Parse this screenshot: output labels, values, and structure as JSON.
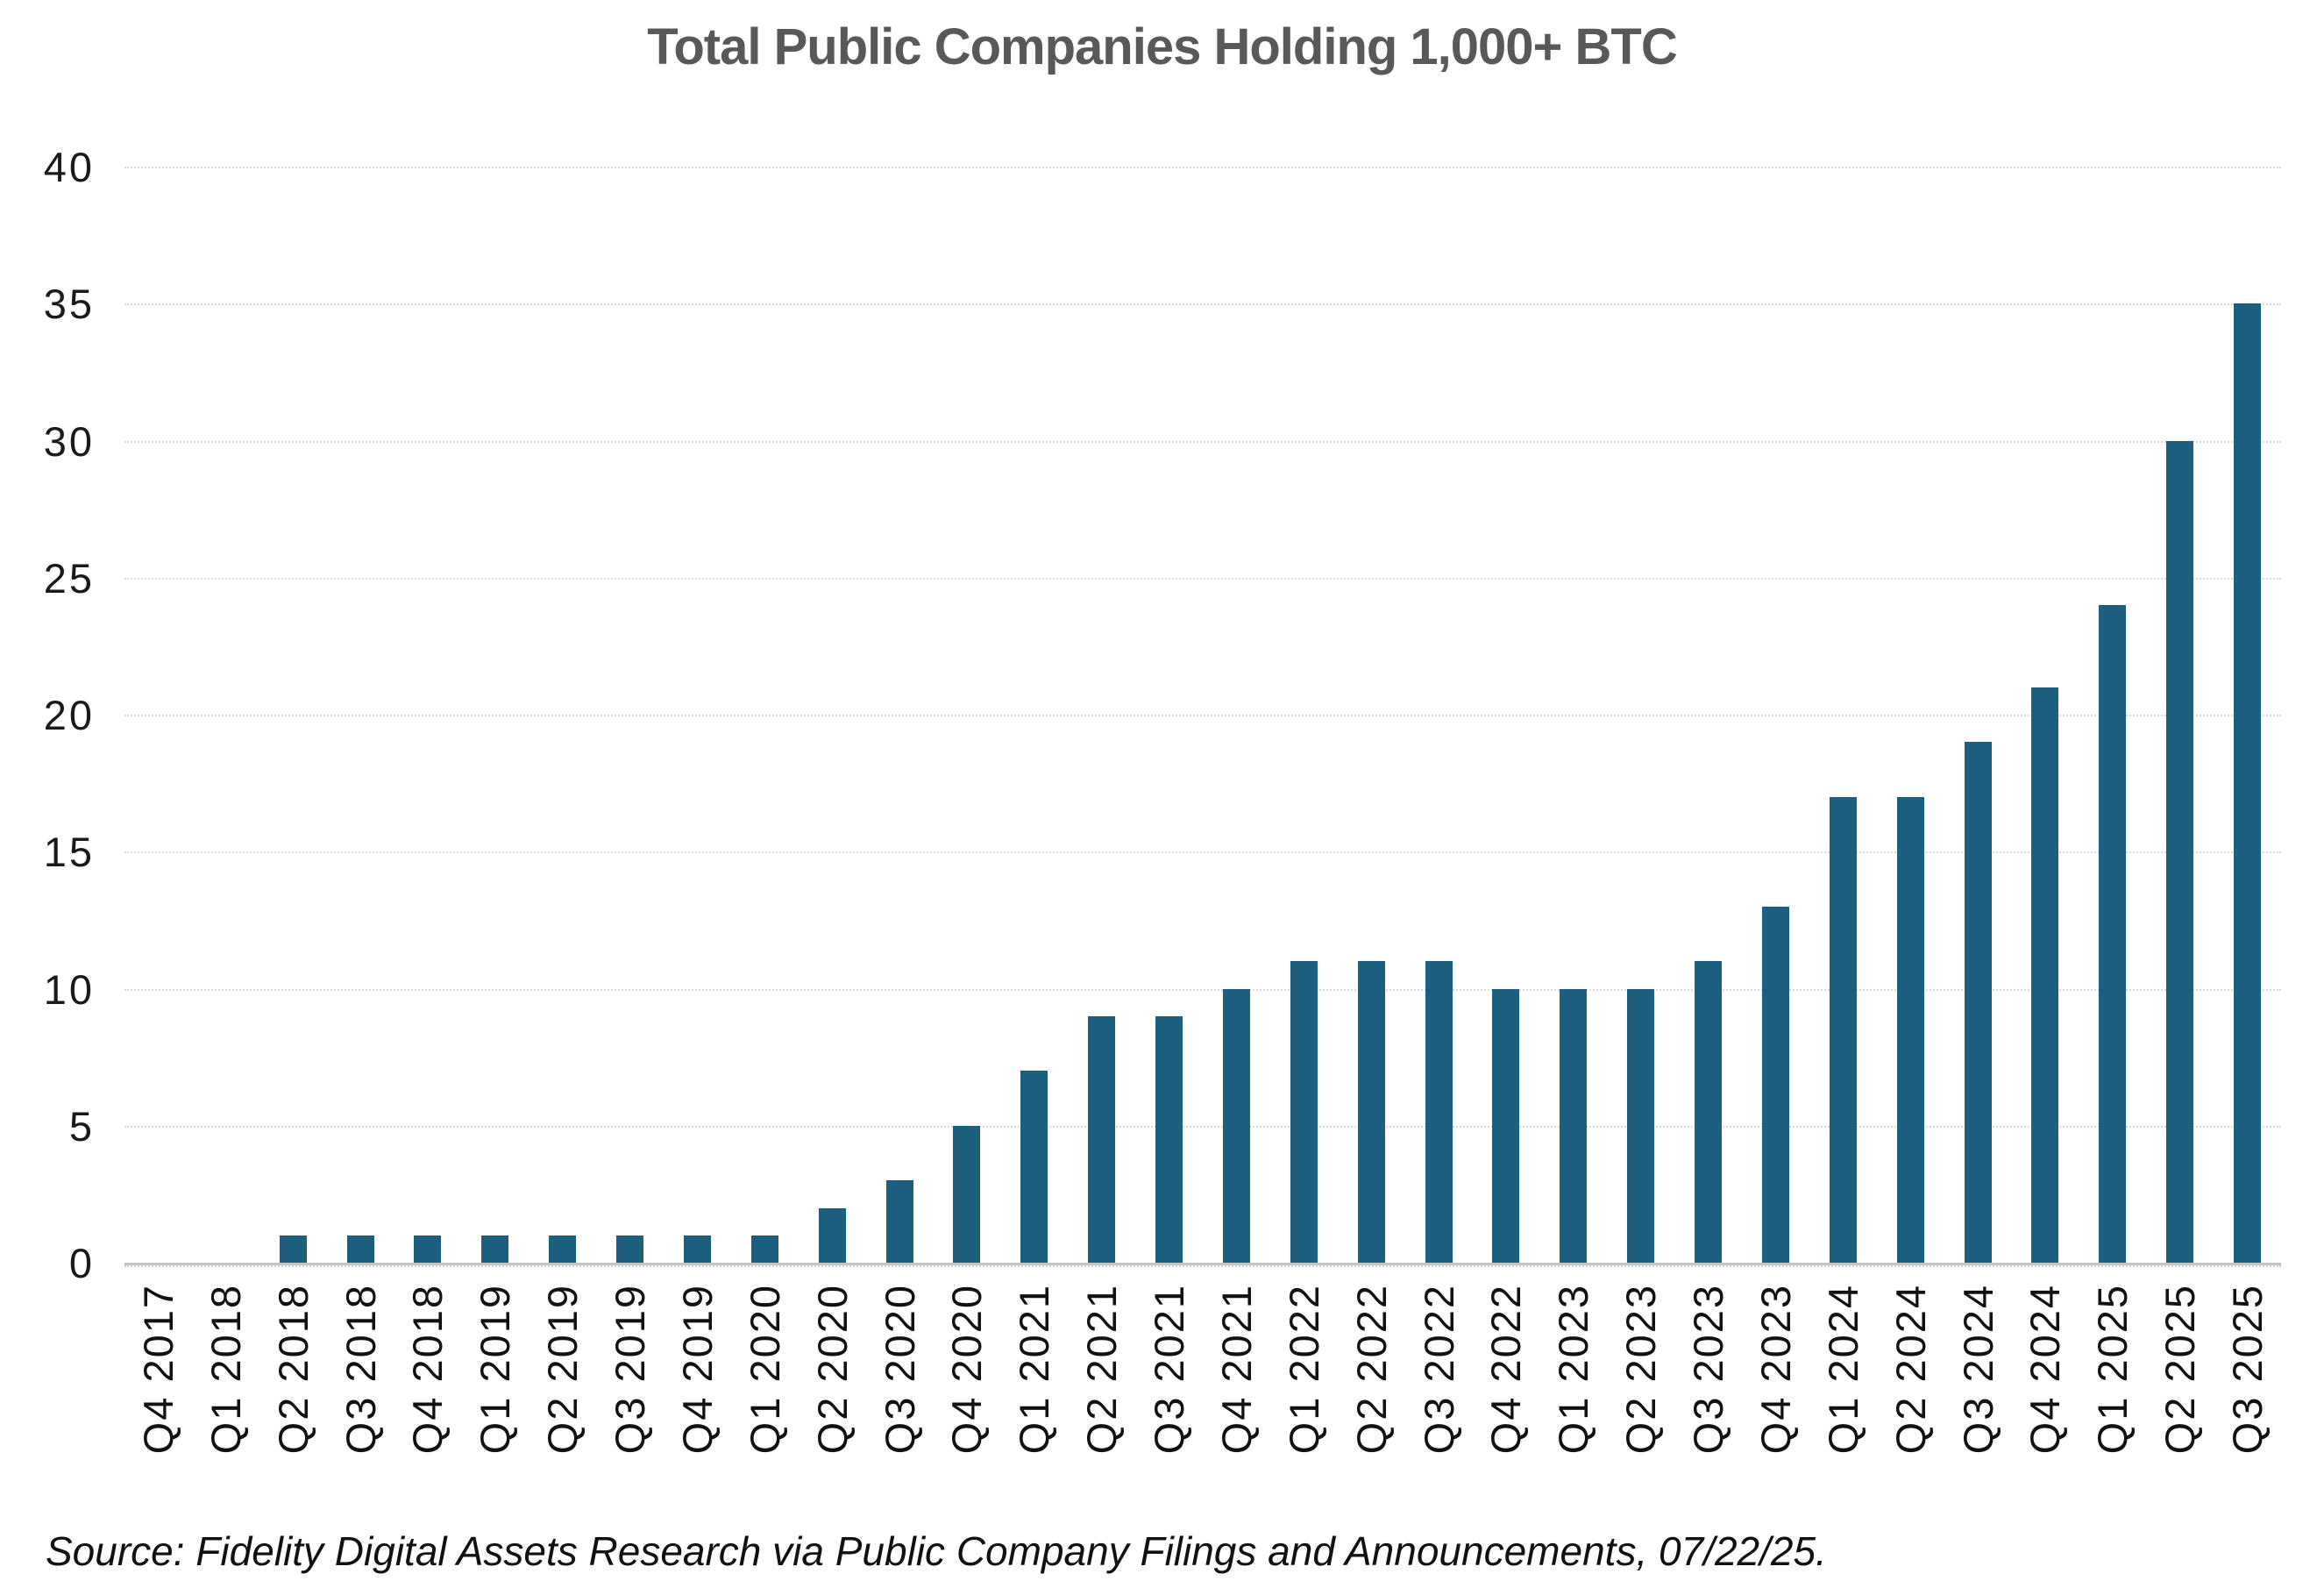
{
  "title": "Total Public Companies Holding 1,000+ BTC",
  "source_note": "Source: Fidelity Digital Assets Research via Public Company Filings and Announcements, 07/22/25.",
  "colors": {
    "bar": "#1d5f7e",
    "title_text": "#595959",
    "axis_text": "#1a1a1a",
    "gridline": "#d9d9d9",
    "baseline": "#c3c3c3",
    "background": "#ffffff"
  },
  "y_axis": {
    "min": 0,
    "max": 40,
    "tick_step": 5,
    "ticks": [
      40,
      35,
      30,
      25,
      20,
      15,
      10,
      5,
      0
    ]
  },
  "chart_data": {
    "type": "bar",
    "title": "Total Public Companies Holding 1,000+ BTC",
    "xlabel": "",
    "ylabel": "",
    "ylim": [
      0,
      40
    ],
    "grid": "horizontal-dotted",
    "legend": "none",
    "x_label_rotation": 90,
    "categories": [
      "Q4 2017",
      "Q1 2018",
      "Q2 2018",
      "Q3 2018",
      "Q4 2018",
      "Q1 2019",
      "Q2 2019",
      "Q3 2019",
      "Q4 2019",
      "Q1 2020",
      "Q2 2020",
      "Q3 2020",
      "Q4 2020",
      "Q1 2021",
      "Q2 2021",
      "Q3 2021",
      "Q4 2021",
      "Q1 2022",
      "Q2 2022",
      "Q3 2022",
      "Q4 2022",
      "Q1 2023",
      "Q2 2023",
      "Q3 2023",
      "Q4 2023",
      "Q1 2024",
      "Q2 2024",
      "Q3 2024",
      "Q4 2024",
      "Q1 2025",
      "Q2 2025",
      "Q3 2025"
    ],
    "values": [
      0,
      0,
      1,
      1,
      1,
      1,
      1,
      1,
      1,
      1,
      2,
      3,
      5,
      7,
      9,
      9,
      10,
      11,
      11,
      11,
      10,
      10,
      10,
      11,
      13,
      17,
      17,
      19,
      21,
      24,
      30,
      35
    ]
  }
}
